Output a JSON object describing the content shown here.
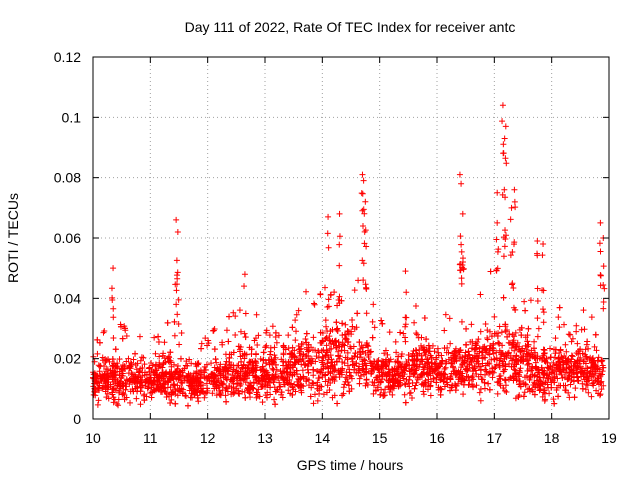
{
  "chart_data": {
    "type": "scatter",
    "title": "Day 111 of 2022, Rate Of TEC Index for receiver antc",
    "xlabel": "GPS time / hours",
    "ylabel": "ROTI / TECUs",
    "xlim": [
      10,
      19
    ],
    "ylim": [
      0,
      0.12
    ],
    "xticks": [
      "10",
      "11",
      "12",
      "13",
      "14",
      "15",
      "16",
      "17",
      "18",
      "19"
    ],
    "yticks": [
      "0",
      "0.02",
      "0.04",
      "0.06",
      "0.08",
      "0.1",
      "0.12"
    ],
    "grid": true,
    "marker": "plus",
    "series_color": "#ff0000",
    "envelope": {
      "x": [
        10.0,
        10.3,
        10.5,
        11.0,
        11.3,
        11.5,
        11.8,
        12.0,
        12.3,
        12.6,
        13.0,
        13.3,
        13.6,
        14.0,
        14.3,
        14.6,
        14.9,
        15.2,
        15.5,
        15.8,
        16.0,
        16.3,
        16.6,
        16.9,
        17.2,
        17.5,
        17.8,
        18.0,
        18.3,
        18.6,
        18.9
      ],
      "base": [
        0.012,
        0.013,
        0.013,
        0.012,
        0.014,
        0.013,
        0.012,
        0.013,
        0.014,
        0.015,
        0.014,
        0.015,
        0.017,
        0.018,
        0.019,
        0.02,
        0.016,
        0.014,
        0.016,
        0.018,
        0.017,
        0.016,
        0.018,
        0.02,
        0.02,
        0.018,
        0.016,
        0.016,
        0.017,
        0.016,
        0.014
      ],
      "spread": [
        0.008,
        0.012,
        0.012,
        0.01,
        0.012,
        0.012,
        0.01,
        0.01,
        0.012,
        0.014,
        0.012,
        0.014,
        0.016,
        0.018,
        0.02,
        0.02,
        0.014,
        0.01,
        0.014,
        0.014,
        0.012,
        0.014,
        0.014,
        0.018,
        0.02,
        0.018,
        0.012,
        0.014,
        0.012,
        0.014,
        0.012
      ]
    },
    "peaks": [
      {
        "x": 10.35,
        "y": 0.05
      },
      {
        "x": 11.45,
        "y": 0.066
      },
      {
        "x": 11.48,
        "y": 0.062
      },
      {
        "x": 12.65,
        "y": 0.048
      },
      {
        "x": 14.1,
        "y": 0.067
      },
      {
        "x": 14.3,
        "y": 0.068
      },
      {
        "x": 14.7,
        "y": 0.081
      },
      {
        "x": 14.72,
        "y": 0.079
      },
      {
        "x": 14.75,
        "y": 0.072
      },
      {
        "x": 15.45,
        "y": 0.049
      },
      {
        "x": 16.4,
        "y": 0.081
      },
      {
        "x": 16.42,
        "y": 0.078
      },
      {
        "x": 16.45,
        "y": 0.068
      },
      {
        "x": 17.15,
        "y": 0.104
      },
      {
        "x": 17.2,
        "y": 0.097
      },
      {
        "x": 17.18,
        "y": 0.093
      },
      {
        "x": 17.05,
        "y": 0.075
      },
      {
        "x": 17.35,
        "y": 0.076
      },
      {
        "x": 17.3,
        "y": 0.07
      },
      {
        "x": 17.75,
        "y": 0.059
      },
      {
        "x": 17.85,
        "y": 0.058
      },
      {
        "x": 18.85,
        "y": 0.065
      },
      {
        "x": 18.9,
        "y": 0.06
      }
    ]
  }
}
